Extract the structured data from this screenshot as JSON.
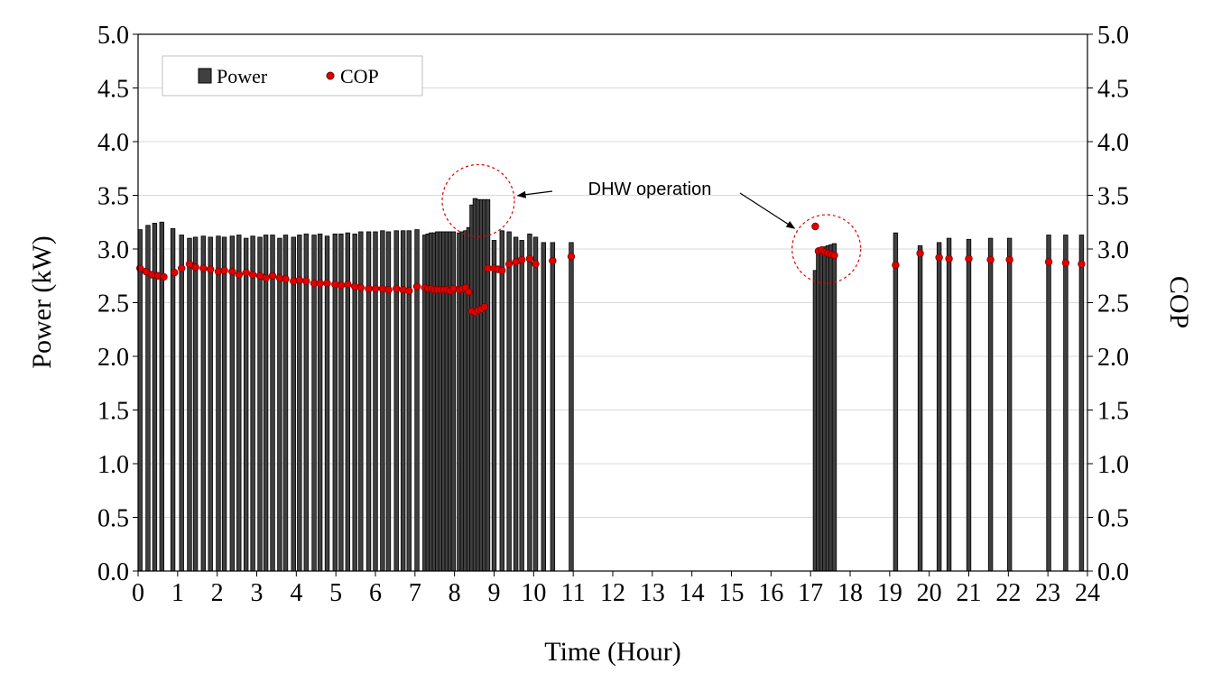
{
  "chart_data": {
    "type": "bar",
    "xlabel": "Time (Hour)",
    "ylabel_left": "Power (kW)",
    "ylabel_right": "COP",
    "xlim": [
      0,
      24
    ],
    "ylim_left": [
      0,
      5
    ],
    "ylim_right": [
      0,
      5
    ],
    "x_ticks": [
      "0",
      "1",
      "2",
      "3",
      "4",
      "5",
      "6",
      "7",
      "8",
      "9",
      "10",
      "11",
      "12",
      "13",
      "14",
      "15",
      "16",
      "17",
      "18",
      "19",
      "20",
      "21",
      "22",
      "23",
      "24"
    ],
    "y_ticks_left": [
      "0.0",
      "0.5",
      "1.0",
      "1.5",
      "2.0",
      "2.5",
      "3.0",
      "3.5",
      "4.0",
      "4.5",
      "5.0"
    ],
    "y_ticks_right": [
      "0.0",
      "0.5",
      "1.0",
      "1.5",
      "2.0",
      "2.5",
      "3.0",
      "3.5",
      "4.0",
      "4.5",
      "5.0"
    ],
    "grid": "horizontal",
    "legend_position": "top-left",
    "colors": {
      "power_bar": "#404040",
      "cop_marker": "#e00000",
      "annotation_circle": "#e00000"
    },
    "series": [
      {
        "name": "Power",
        "kind": "bar",
        "axis": "left",
        "x": [
          0.05,
          0.25,
          0.42,
          0.6,
          0.88,
          1.1,
          1.3,
          1.45,
          1.65,
          1.83,
          2.03,
          2.18,
          2.38,
          2.55,
          2.73,
          2.9,
          3.08,
          3.23,
          3.4,
          3.58,
          3.73,
          3.93,
          4.08,
          4.25,
          4.45,
          4.6,
          4.78,
          4.98,
          5.13,
          5.3,
          5.48,
          5.63,
          5.83,
          6.0,
          6.18,
          6.33,
          6.53,
          6.7,
          6.85,
          7.05,
          7.25,
          7.33,
          7.41,
          7.49,
          7.57,
          7.65,
          7.73,
          7.81,
          7.89,
          7.97,
          8.12,
          8.2,
          8.28,
          8.36,
          8.44,
          8.52,
          8.6,
          8.68,
          8.76,
          8.84,
          9.0,
          9.2,
          9.38,
          9.55,
          9.7,
          9.9,
          10.05,
          10.25,
          10.48,
          10.95,
          17.12,
          17.2,
          17.28,
          17.36,
          17.44,
          17.52,
          17.6,
          19.15,
          19.77,
          20.25,
          20.5,
          21.0,
          21.55,
          22.03,
          23.02,
          23.45,
          23.85
        ],
        "values": [
          3.18,
          3.22,
          3.24,
          3.25,
          3.19,
          3.13,
          3.1,
          3.11,
          3.12,
          3.11,
          3.12,
          3.11,
          3.12,
          3.13,
          3.1,
          3.12,
          3.11,
          3.13,
          3.13,
          3.1,
          3.13,
          3.11,
          3.13,
          3.14,
          3.13,
          3.14,
          3.12,
          3.14,
          3.14,
          3.15,
          3.14,
          3.16,
          3.16,
          3.16,
          3.17,
          3.16,
          3.17,
          3.17,
          3.17,
          3.18,
          3.13,
          3.14,
          3.15,
          3.15,
          3.16,
          3.16,
          3.16,
          3.16,
          3.16,
          3.16,
          3.15,
          3.16,
          3.17,
          3.2,
          3.41,
          3.47,
          3.46,
          3.46,
          3.46,
          3.46,
          3.08,
          3.17,
          3.16,
          3.11,
          3.08,
          3.14,
          3.11,
          3.06,
          3.06,
          3.06,
          2.8,
          2.98,
          3.0,
          3.02,
          3.03,
          3.04,
          3.05,
          3.15,
          3.03,
          3.06,
          3.1,
          3.09,
          3.1,
          3.1,
          3.13,
          3.13,
          3.13
        ]
      },
      {
        "name": "COP",
        "kind": "scatter",
        "axis": "right",
        "x": [
          0.05,
          0.2,
          0.35,
          0.5,
          0.65,
          0.92,
          1.1,
          1.3,
          1.45,
          1.65,
          1.83,
          2.03,
          2.18,
          2.38,
          2.55,
          2.73,
          2.9,
          3.08,
          3.23,
          3.4,
          3.58,
          3.73,
          3.93,
          4.08,
          4.25,
          4.45,
          4.6,
          4.78,
          4.98,
          5.13,
          5.3,
          5.48,
          5.63,
          5.83,
          6.0,
          6.18,
          6.33,
          6.53,
          6.7,
          6.85,
          7.05,
          7.25,
          7.33,
          7.41,
          7.49,
          7.57,
          7.65,
          7.73,
          7.81,
          7.89,
          7.97,
          8.12,
          8.2,
          8.28,
          8.36,
          8.44,
          8.52,
          8.6,
          8.68,
          8.76,
          8.84,
          9.0,
          9.1,
          9.2,
          9.38,
          9.55,
          9.7,
          9.9,
          10.05,
          10.48,
          10.95,
          17.12,
          17.2,
          17.28,
          17.36,
          17.44,
          17.52,
          17.6,
          19.15,
          19.77,
          20.25,
          20.5,
          21.0,
          21.55,
          22.03,
          23.02,
          23.45,
          23.85
        ],
        "values": [
          2.82,
          2.79,
          2.76,
          2.75,
          2.74,
          2.78,
          2.82,
          2.86,
          2.83,
          2.82,
          2.81,
          2.79,
          2.8,
          2.79,
          2.76,
          2.78,
          2.76,
          2.75,
          2.73,
          2.75,
          2.73,
          2.72,
          2.7,
          2.71,
          2.7,
          2.68,
          2.68,
          2.68,
          2.67,
          2.66,
          2.67,
          2.65,
          2.64,
          2.63,
          2.63,
          2.63,
          2.62,
          2.63,
          2.62,
          2.61,
          2.65,
          2.64,
          2.63,
          2.63,
          2.62,
          2.62,
          2.62,
          2.62,
          2.62,
          2.61,
          2.63,
          2.62,
          2.63,
          2.64,
          2.6,
          2.42,
          2.41,
          2.43,
          2.44,
          2.46,
          2.82,
          2.82,
          2.81,
          2.8,
          2.86,
          2.88,
          2.9,
          2.91,
          2.86,
          2.89,
          2.93,
          3.21,
          2.98,
          2.99,
          2.97,
          2.96,
          2.95,
          2.94,
          2.85,
          2.96,
          2.92,
          2.91,
          2.91,
          2.9,
          2.9,
          2.88,
          2.87,
          2.86
        ]
      }
    ],
    "annotations": [
      {
        "text": "DHW operation",
        "targets": [
          {
            "x": 8.6,
            "y": 3.45
          },
          {
            "x": 17.4,
            "y": 3.0
          }
        ]
      }
    ]
  }
}
